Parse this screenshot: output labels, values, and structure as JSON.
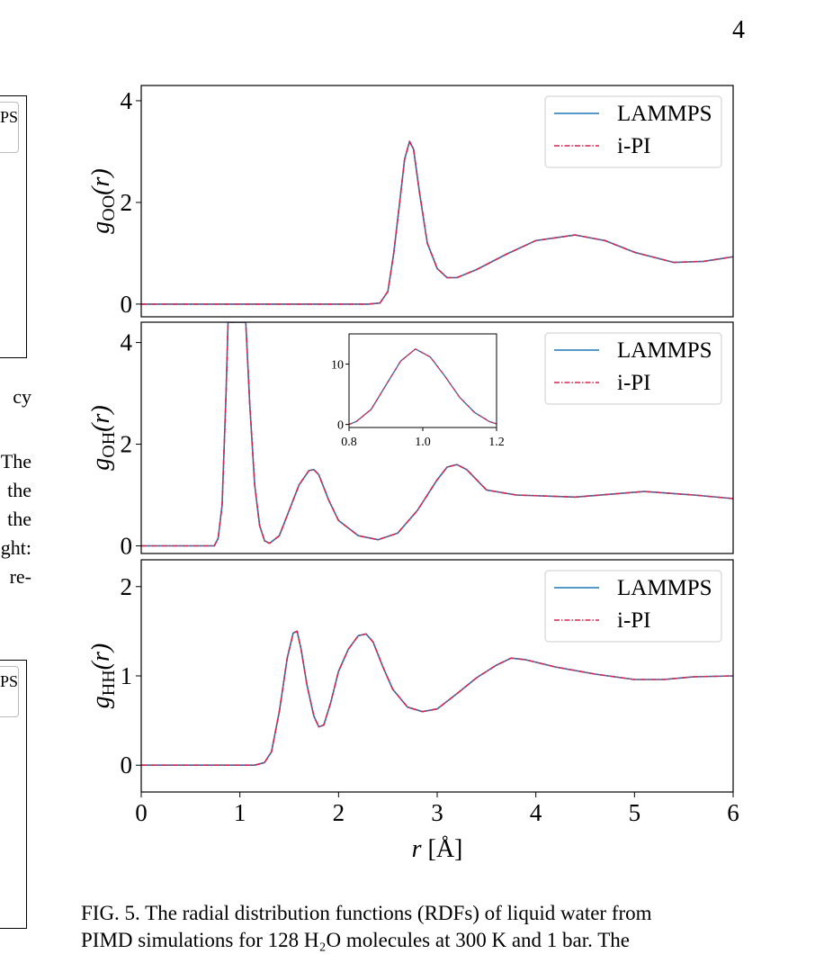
{
  "page": {
    "number": "4"
  },
  "left_fragments": {
    "lines": [
      "cy",
      "The",
      "the",
      "the",
      "ght:",
      "re-"
    ],
    "legend_text_top": "PS",
    "legend_text_bottom": "PS"
  },
  "caption": {
    "line1": "FIG. 5. The radial distribution functions (RDFs) of liquid water from",
    "line2": "PIMD simulations for 128 H₂O molecules at 300 K and 1 bar. The"
  },
  "colors": {
    "lammps": "#1f77b4",
    "ipi": "#d62750"
  },
  "legend": {
    "entries": [
      "LAMMPS",
      "i-PI"
    ],
    "placement": "top-right"
  },
  "chart_data": [
    {
      "type": "line",
      "ylabel_main": "g",
      "ylabel_sub": "OO",
      "ylabel_arg": "(r)",
      "xlim": [
        0,
        6
      ],
      "ylim": [
        -0.25,
        4.3
      ],
      "yticks": [
        0,
        2,
        4
      ],
      "series": [
        {
          "name": "LAMMPS",
          "color": "#1f77b4",
          "style": "solid",
          "x": [
            0,
            2.3,
            2.42,
            2.5,
            2.56,
            2.62,
            2.67,
            2.72,
            2.76,
            2.82,
            2.9,
            3.0,
            3.1,
            3.2,
            3.4,
            3.7,
            4.0,
            4.4,
            4.7,
            5.0,
            5.4,
            5.7,
            6.0
          ],
          "y": [
            0,
            0,
            0.02,
            0.25,
            1.0,
            2.0,
            2.85,
            3.2,
            3.05,
            2.2,
            1.2,
            0.7,
            0.52,
            0.52,
            0.68,
            0.98,
            1.25,
            1.36,
            1.25,
            1.02,
            0.82,
            0.84,
            0.93
          ]
        },
        {
          "name": "i-PI",
          "color": "#d62750",
          "style": "dashdot",
          "x": [
            0,
            2.3,
            2.42,
            2.5,
            2.56,
            2.62,
            2.67,
            2.72,
            2.76,
            2.82,
            2.9,
            3.0,
            3.1,
            3.2,
            3.4,
            3.7,
            4.0,
            4.4,
            4.7,
            5.0,
            5.4,
            5.7,
            6.0
          ],
          "y": [
            0,
            0,
            0.02,
            0.25,
            1.0,
            2.0,
            2.85,
            3.2,
            3.05,
            2.2,
            1.2,
            0.7,
            0.52,
            0.52,
            0.68,
            0.98,
            1.25,
            1.36,
            1.25,
            1.02,
            0.82,
            0.84,
            0.93
          ]
        }
      ]
    },
    {
      "type": "line",
      "ylabel_main": "g",
      "ylabel_sub": "OH",
      "ylabel_arg": "(r)",
      "xlim": [
        0,
        6
      ],
      "ylim": [
        -0.15,
        4.4
      ],
      "yticks": [
        0,
        2,
        4
      ],
      "series": [
        {
          "name": "LAMMPS",
          "color": "#1f77b4",
          "style": "solid",
          "x": [
            0,
            0.74,
            0.78,
            0.82,
            0.86,
            0.88,
            0.9,
            1.02,
            1.06,
            1.1,
            1.15,
            1.2,
            1.25,
            1.3,
            1.4,
            1.5,
            1.6,
            1.7,
            1.75,
            1.8,
            1.9,
            2.0,
            2.2,
            2.4,
            2.6,
            2.8,
            3.0,
            3.1,
            3.2,
            3.3,
            3.5,
            3.8,
            4.4,
            5.1,
            5.6,
            6.0
          ],
          "y": [
            0,
            0,
            0.15,
            0.8,
            3.0,
            4.4,
            4.4,
            4.4,
            4.4,
            2.8,
            1.2,
            0.4,
            0.1,
            0.05,
            0.2,
            0.7,
            1.2,
            1.48,
            1.5,
            1.4,
            0.9,
            0.5,
            0.2,
            0.12,
            0.25,
            0.7,
            1.3,
            1.55,
            1.6,
            1.5,
            1.1,
            1.0,
            0.96,
            1.07,
            1.0,
            0.93
          ]
        },
        {
          "name": "i-PI",
          "color": "#d62750",
          "style": "dashdot",
          "x": [
            0,
            0.74,
            0.78,
            0.82,
            0.86,
            0.88,
            0.9,
            1.02,
            1.06,
            1.1,
            1.15,
            1.2,
            1.25,
            1.3,
            1.4,
            1.5,
            1.6,
            1.7,
            1.75,
            1.8,
            1.9,
            2.0,
            2.2,
            2.4,
            2.6,
            2.8,
            3.0,
            3.1,
            3.2,
            3.3,
            3.5,
            3.8,
            4.4,
            5.1,
            5.6,
            6.0
          ],
          "y": [
            0,
            0,
            0.15,
            0.8,
            3.0,
            4.4,
            4.4,
            4.4,
            4.4,
            2.8,
            1.2,
            0.4,
            0.1,
            0.05,
            0.2,
            0.7,
            1.2,
            1.48,
            1.5,
            1.4,
            0.9,
            0.5,
            0.2,
            0.12,
            0.25,
            0.7,
            1.3,
            1.55,
            1.6,
            1.5,
            1.1,
            1.0,
            0.96,
            1.07,
            1.0,
            0.93
          ]
        }
      ],
      "inset": {
        "xlim": [
          0.8,
          1.2
        ],
        "ylim": [
          -0.5,
          15
        ],
        "xticks": [
          "0.8",
          "1.0",
          "1.2"
        ],
        "yticks": [
          0,
          10
        ],
        "x": [
          0.8,
          0.82,
          0.86,
          0.9,
          0.94,
          0.98,
          1.02,
          1.06,
          1.1,
          1.14,
          1.18,
          1.2
        ],
        "y": [
          0,
          0.5,
          2.5,
          6.5,
          10.5,
          12.5,
          11.2,
          8,
          4.5,
          2,
          0.5,
          0.1
        ]
      }
    },
    {
      "type": "line",
      "ylabel_main": "g",
      "ylabel_sub": "HH",
      "ylabel_arg": "(r)",
      "xlim": [
        0,
        6
      ],
      "ylim": [
        -0.3,
        2.3
      ],
      "yticks": [
        0,
        1,
        2
      ],
      "xticks": [
        0,
        1,
        2,
        3,
        4,
        5,
        6
      ],
      "xlabel_main": "r",
      "xlabel_unit": "[Å]",
      "series": [
        {
          "name": "LAMMPS",
          "color": "#1f77b4",
          "style": "solid",
          "x": [
            0,
            1.15,
            1.25,
            1.32,
            1.4,
            1.48,
            1.54,
            1.58,
            1.62,
            1.68,
            1.75,
            1.8,
            1.85,
            1.92,
            2.0,
            2.1,
            2.2,
            2.28,
            2.35,
            2.45,
            2.55,
            2.7,
            2.85,
            3.0,
            3.2,
            3.4,
            3.6,
            3.75,
            3.9,
            4.2,
            4.6,
            5.0,
            5.3,
            5.6,
            6.0
          ],
          "y": [
            0,
            0,
            0.03,
            0.15,
            0.6,
            1.2,
            1.48,
            1.5,
            1.3,
            0.9,
            0.55,
            0.43,
            0.45,
            0.7,
            1.05,
            1.3,
            1.45,
            1.47,
            1.38,
            1.1,
            0.85,
            0.65,
            0.6,
            0.63,
            0.8,
            0.98,
            1.12,
            1.2,
            1.18,
            1.1,
            1.02,
            0.96,
            0.96,
            0.99,
            1.0
          ]
        },
        {
          "name": "i-PI",
          "color": "#d62750",
          "style": "dashdot",
          "x": [
            0,
            1.15,
            1.25,
            1.32,
            1.4,
            1.48,
            1.54,
            1.58,
            1.62,
            1.68,
            1.75,
            1.8,
            1.85,
            1.92,
            2.0,
            2.1,
            2.2,
            2.28,
            2.35,
            2.45,
            2.55,
            2.7,
            2.85,
            3.0,
            3.2,
            3.4,
            3.6,
            3.75,
            3.9,
            4.2,
            4.6,
            5.0,
            5.3,
            5.6,
            6.0
          ],
          "y": [
            0,
            0,
            0.03,
            0.15,
            0.6,
            1.2,
            1.48,
            1.5,
            1.3,
            0.9,
            0.55,
            0.43,
            0.45,
            0.7,
            1.05,
            1.3,
            1.45,
            1.47,
            1.38,
            1.1,
            0.85,
            0.65,
            0.6,
            0.63,
            0.8,
            0.98,
            1.12,
            1.2,
            1.18,
            1.1,
            1.02,
            0.96,
            0.96,
            0.99,
            1.0
          ]
        }
      ]
    }
  ]
}
